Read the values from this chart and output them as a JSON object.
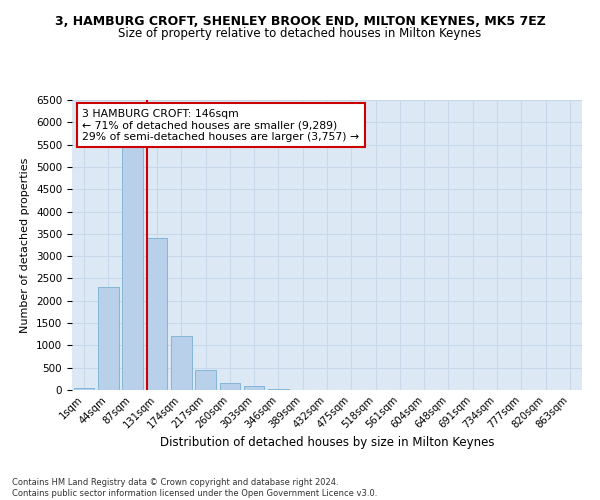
{
  "title": "3, HAMBURG CROFT, SHENLEY BROOK END, MILTON KEYNES, MK5 7EZ",
  "subtitle": "Size of property relative to detached houses in Milton Keynes",
  "xlabel": "Distribution of detached houses by size in Milton Keynes",
  "ylabel": "Number of detached properties",
  "footer_line1": "Contains HM Land Registry data © Crown copyright and database right 2024.",
  "footer_line2": "Contains public sector information licensed under the Open Government Licence v3.0.",
  "categories": [
    "1sqm",
    "44sqm",
    "87sqm",
    "131sqm",
    "174sqm",
    "217sqm",
    "260sqm",
    "303sqm",
    "346sqm",
    "389sqm",
    "432sqm",
    "475sqm",
    "518sqm",
    "561sqm",
    "604sqm",
    "648sqm",
    "691sqm",
    "734sqm",
    "777sqm",
    "820sqm",
    "863sqm"
  ],
  "values": [
    50,
    2300,
    5900,
    3400,
    1200,
    450,
    150,
    80,
    30,
    10,
    5,
    3,
    2,
    1,
    0,
    0,
    0,
    0,
    0,
    0,
    0
  ],
  "bar_color": "#b8d0ea",
  "bar_edge_color": "#7aafd4",
  "grid_color": "#c8d8ea",
  "background_color": "#dce9f5",
  "vline_color": "#cc0000",
  "vline_x_index": 3,
  "annotation_text": "3 HAMBURG CROFT: 146sqm\n← 71% of detached houses are smaller (9,289)\n29% of semi-detached houses are larger (3,757) →",
  "annotation_box_color": "white",
  "annotation_box_edge": "#cc0000",
  "ylim": [
    0,
    6500
  ],
  "yticks": [
    0,
    500,
    1000,
    1500,
    2000,
    2500,
    3000,
    3500,
    4000,
    4500,
    5000,
    5500,
    6000,
    6500
  ]
}
